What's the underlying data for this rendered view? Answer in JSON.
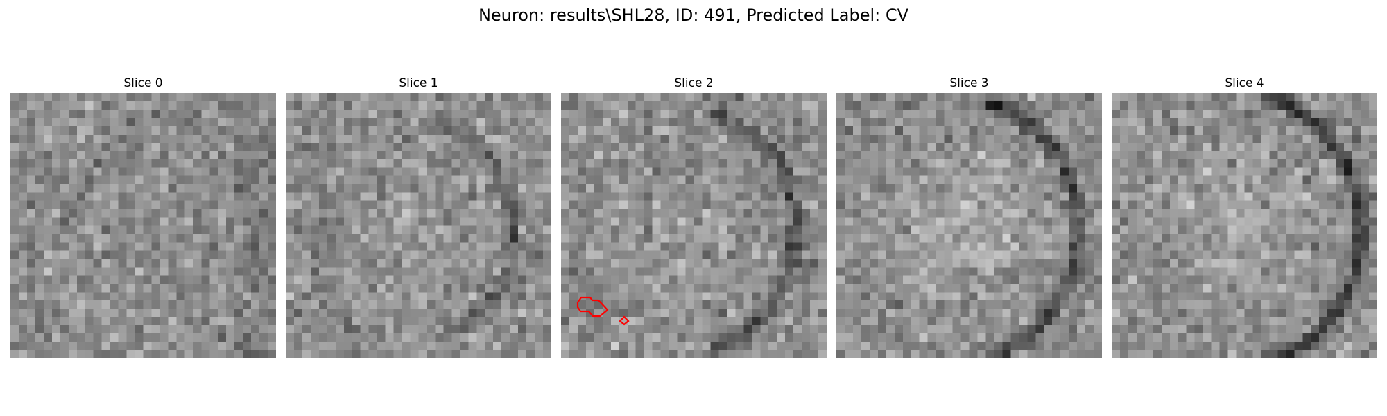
{
  "title": "Neuron: results\\SHL28, ID: 491, Predicted Label: CV",
  "colormap": "gray",
  "contour_color": "#ff0000",
  "grid_size": 32,
  "panels": [
    {
      "title": "Slice 0",
      "contours": false
    },
    {
      "title": "Slice 1",
      "contours": false
    },
    {
      "title": "Slice 2",
      "contours": true
    },
    {
      "title": "Slice 3",
      "contours": false
    },
    {
      "title": "Slice 4",
      "contours": false
    }
  ]
}
